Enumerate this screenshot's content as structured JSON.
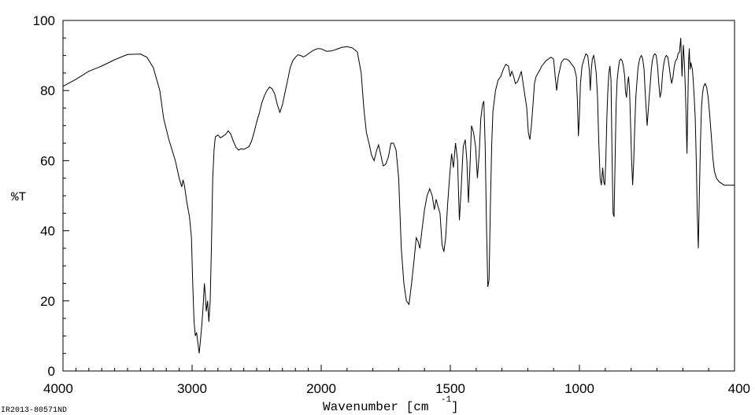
{
  "chart_data": {
    "type": "line",
    "xlabel_main": "Wavenumber [cm",
    "xlabel_sup": "-1",
    "xlabel_end": "]",
    "ylabel": "%T",
    "footer_id": "IR2013-80571ND",
    "xlim": [
      4000,
      400
    ],
    "ylim": [
      0,
      100
    ],
    "x_ticks": [
      4000,
      3000,
      2000,
      1500,
      1000,
      400
    ],
    "x_tick_labels": [
      "4000",
      "3000",
      "2000",
      "1500",
      "1000",
      "400"
    ],
    "y_ticks": [
      0,
      20,
      40,
      60,
      80,
      100
    ],
    "y_tick_labels": [
      "0",
      "20",
      "40",
      "60",
      "80",
      "100"
    ],
    "series": [
      {
        "color": "#000000",
        "points": [
          [
            4000,
            81.2
          ],
          [
            3900,
            83.2
          ],
          [
            3800,
            85.5
          ],
          [
            3700,
            87
          ],
          [
            3600,
            88.8
          ],
          [
            3500,
            90.3
          ],
          [
            3400,
            90.4
          ],
          [
            3350,
            89.5
          ],
          [
            3300,
            86.5
          ],
          [
            3250,
            80
          ],
          [
            3220,
            72
          ],
          [
            3180,
            66
          ],
          [
            3130,
            60
          ],
          [
            3100,
            55
          ],
          [
            3080,
            52.5
          ],
          [
            3070,
            54.5
          ],
          [
            3060,
            53
          ],
          [
            3040,
            48
          ],
          [
            3020,
            44
          ],
          [
            3005,
            38
          ],
          [
            2995,
            25
          ],
          [
            2985,
            14
          ],
          [
            2975,
            10
          ],
          [
            2965,
            11
          ],
          [
            2955,
            8
          ],
          [
            2945,
            5
          ],
          [
            2935,
            9
          ],
          [
            2925,
            13
          ],
          [
            2915,
            18
          ],
          [
            2905,
            25
          ],
          [
            2898,
            22
          ],
          [
            2890,
            17
          ],
          [
            2880,
            20
          ],
          [
            2870,
            14
          ],
          [
            2860,
            20
          ],
          [
            2850,
            36
          ],
          [
            2840,
            55
          ],
          [
            2830,
            63
          ],
          [
            2820,
            66.8
          ],
          [
            2800,
            67.3
          ],
          [
            2780,
            66.5
          ],
          [
            2760,
            67
          ],
          [
            2740,
            67.5
          ],
          [
            2720,
            68.5
          ],
          [
            2700,
            67.5
          ],
          [
            2680,
            65.5
          ],
          [
            2660,
            63.8
          ],
          [
            2640,
            63
          ],
          [
            2620,
            63.4
          ],
          [
            2600,
            63.2
          ],
          [
            2580,
            63.6
          ],
          [
            2560,
            64
          ],
          [
            2540,
            65.5
          ],
          [
            2520,
            68
          ],
          [
            2500,
            71
          ],
          [
            2480,
            73.5
          ],
          [
            2460,
            76.5
          ],
          [
            2440,
            78.5
          ],
          [
            2420,
            80
          ],
          [
            2400,
            81
          ],
          [
            2380,
            80.5
          ],
          [
            2360,
            79
          ],
          [
            2340,
            76
          ],
          [
            2320,
            73.8
          ],
          [
            2300,
            76
          ],
          [
            2280,
            79.5
          ],
          [
            2260,
            83
          ],
          [
            2240,
            86.5
          ],
          [
            2220,
            88.5
          ],
          [
            2200,
            89.5
          ],
          [
            2180,
            90.2
          ],
          [
            2160,
            90
          ],
          [
            2140,
            89.6
          ],
          [
            2120,
            89.9
          ],
          [
            2100,
            90.5
          ],
          [
            2080,
            91
          ],
          [
            2060,
            91.5
          ],
          [
            2040,
            91.8
          ],
          [
            2020,
            92
          ],
          [
            2000,
            91.9
          ],
          [
            1980,
            91.2
          ],
          [
            1960,
            91.3
          ],
          [
            1940,
            91.8
          ],
          [
            1920,
            92.3
          ],
          [
            1900,
            92.5
          ],
          [
            1880,
            92.2
          ],
          [
            1860,
            91
          ],
          [
            1845,
            85
          ],
          [
            1835,
            75
          ],
          [
            1825,
            68
          ],
          [
            1815,
            65
          ],
          [
            1805,
            61.5
          ],
          [
            1795,
            60
          ],
          [
            1785,
            63
          ],
          [
            1778,
            64.5
          ],
          [
            1770,
            62
          ],
          [
            1760,
            58.5
          ],
          [
            1750,
            59
          ],
          [
            1740,
            61
          ],
          [
            1730,
            65
          ],
          [
            1720,
            65
          ],
          [
            1710,
            63
          ],
          [
            1700,
            55
          ],
          [
            1690,
            35
          ],
          [
            1680,
            25
          ],
          [
            1670,
            20
          ],
          [
            1660,
            19
          ],
          [
            1650,
            25
          ],
          [
            1640,
            32
          ],
          [
            1632,
            38
          ],
          [
            1625,
            37
          ],
          [
            1618,
            35
          ],
          [
            1610,
            40
          ],
          [
            1600,
            46
          ],
          [
            1590,
            50
          ],
          [
            1580,
            52
          ],
          [
            1570,
            50
          ],
          [
            1562,
            46
          ],
          [
            1555,
            49
          ],
          [
            1548,
            47
          ],
          [
            1540,
            45
          ],
          [
            1532,
            36
          ],
          [
            1525,
            34
          ],
          [
            1518,
            38
          ],
          [
            1510,
            48
          ],
          [
            1502,
            56
          ],
          [
            1495,
            62
          ],
          [
            1488,
            58
          ],
          [
            1480,
            65
          ],
          [
            1472,
            60
          ],
          [
            1465,
            43
          ],
          [
            1458,
            52
          ],
          [
            1450,
            64
          ],
          [
            1442,
            66
          ],
          [
            1436,
            60
          ],
          [
            1430,
            48
          ],
          [
            1424,
            58
          ],
          [
            1418,
            70
          ],
          [
            1410,
            68
          ],
          [
            1402,
            64
          ],
          [
            1395,
            55
          ],
          [
            1388,
            62
          ],
          [
            1382,
            72
          ],
          [
            1375,
            76
          ],
          [
            1370,
            77
          ],
          [
            1365,
            64
          ],
          [
            1360,
            42
          ],
          [
            1355,
            24
          ],
          [
            1350,
            26
          ],
          [
            1345,
            46
          ],
          [
            1340,
            64
          ],
          [
            1335,
            74
          ],
          [
            1325,
            80
          ],
          [
            1315,
            83
          ],
          [
            1305,
            84
          ],
          [
            1295,
            86
          ],
          [
            1285,
            87.5
          ],
          [
            1275,
            87
          ],
          [
            1268,
            84
          ],
          [
            1262,
            85.5
          ],
          [
            1255,
            84
          ],
          [
            1248,
            82
          ],
          [
            1240,
            82.5
          ],
          [
            1232,
            84
          ],
          [
            1225,
            85.5
          ],
          [
            1218,
            82
          ],
          [
            1210,
            78
          ],
          [
            1204,
            75
          ],
          [
            1198,
            68
          ],
          [
            1192,
            66
          ],
          [
            1186,
            70
          ],
          [
            1180,
            76
          ],
          [
            1174,
            82
          ],
          [
            1168,
            84
          ],
          [
            1160,
            85
          ],
          [
            1152,
            86
          ],
          [
            1146,
            87
          ],
          [
            1140,
            87.5
          ],
          [
            1130,
            88.5
          ],
          [
            1120,
            89
          ],
          [
            1110,
            89.5
          ],
          [
            1100,
            89
          ],
          [
            1094,
            84
          ],
          [
            1088,
            80
          ],
          [
            1082,
            84
          ],
          [
            1076,
            86
          ],
          [
            1070,
            88
          ],
          [
            1060,
            89
          ],
          [
            1050,
            89
          ],
          [
            1040,
            88.5
          ],
          [
            1030,
            87.5
          ],
          [
            1020,
            86.5
          ],
          [
            1012,
            84
          ],
          [
            1008,
            77
          ],
          [
            1004,
            67
          ],
          [
            1000,
            73
          ],
          [
            996,
            82
          ],
          [
            990,
            87
          ],
          [
            982,
            89
          ],
          [
            975,
            90.5
          ],
          [
            968,
            90
          ],
          [
            962,
            86
          ],
          [
            958,
            80
          ],
          [
            954,
            86
          ],
          [
            950,
            89
          ],
          [
            945,
            90
          ],
          [
            940,
            88
          ],
          [
            935,
            85
          ],
          [
            930,
            78
          ],
          [
            925,
            65
          ],
          [
            920,
            55
          ],
          [
            915,
            53
          ],
          [
            910,
            58
          ],
          [
            906,
            54
          ],
          [
            902,
            53
          ],
          [
            898,
            60
          ],
          [
            894,
            72
          ],
          [
            890,
            80
          ],
          [
            886,
            85
          ],
          [
            882,
            87
          ],
          [
            878,
            83
          ],
          [
            874,
            62
          ],
          [
            870,
            45
          ],
          [
            866,
            44
          ],
          [
            862,
            60
          ],
          [
            858,
            76
          ],
          [
            854,
            83
          ],
          [
            850,
            86
          ],
          [
            845,
            88.5
          ],
          [
            840,
            89
          ],
          [
            835,
            88.5
          ],
          [
            830,
            87
          ],
          [
            825,
            84
          ],
          [
            822,
            80
          ],
          [
            818,
            78
          ],
          [
            814,
            82
          ],
          [
            810,
            84
          ],
          [
            806,
            80
          ],
          [
            802,
            70
          ],
          [
            798,
            60
          ],
          [
            794,
            53
          ],
          [
            790,
            60
          ],
          [
            786,
            70
          ],
          [
            782,
            78
          ],
          [
            778,
            82
          ],
          [
            774,
            86
          ],
          [
            770,
            88
          ],
          [
            765,
            89.5
          ],
          [
            760,
            90
          ],
          [
            755,
            89
          ],
          [
            750,
            86
          ],
          [
            746,
            80
          ],
          [
            742,
            75
          ],
          [
            738,
            70
          ],
          [
            734,
            74
          ],
          [
            730,
            78
          ],
          [
            726,
            82
          ],
          [
            722,
            86
          ],
          [
            718,
            88.5
          ],
          [
            713,
            90
          ],
          [
            708,
            90.5
          ],
          [
            703,
            90
          ],
          [
            698,
            87
          ],
          [
            693,
            82
          ],
          [
            688,
            78
          ],
          [
            683,
            80
          ],
          [
            678,
            85
          ],
          [
            673,
            88
          ],
          [
            668,
            89.5
          ],
          [
            663,
            90
          ],
          [
            658,
            89.5
          ],
          [
            653,
            87
          ],
          [
            648,
            84
          ],
          [
            643,
            82
          ],
          [
            638,
            84
          ],
          [
            633,
            87
          ],
          [
            628,
            88.5
          ],
          [
            623,
            89
          ],
          [
            618,
            90.5
          ],
          [
            613,
            91
          ],
          [
            608,
            95
          ],
          [
            603,
            84
          ],
          [
            598,
            93
          ],
          [
            594,
            88
          ],
          [
            590,
            80
          ],
          [
            587,
            72
          ],
          [
            584,
            62
          ],
          [
            581,
            75
          ],
          [
            578,
            88
          ],
          [
            575,
            92
          ],
          [
            572,
            86
          ],
          [
            569,
            88
          ],
          [
            566,
            87
          ],
          [
            563,
            86
          ],
          [
            560,
            83
          ],
          [
            556,
            78
          ],
          [
            552,
            72
          ],
          [
            548,
            60
          ],
          [
            544,
            45
          ],
          [
            540,
            35
          ],
          [
            536,
            50
          ],
          [
            532,
            65
          ],
          [
            528,
            75
          ],
          [
            524,
            79
          ],
          [
            520,
            81
          ],
          [
            514,
            82
          ],
          [
            508,
            81
          ],
          [
            502,
            78
          ],
          [
            496,
            73
          ],
          [
            490,
            67
          ],
          [
            484,
            61
          ],
          [
            478,
            57
          ],
          [
            470,
            55
          ],
          [
            460,
            54
          ],
          [
            450,
            53.5
          ],
          [
            440,
            53
          ],
          [
            430,
            53
          ],
          [
            420,
            53
          ],
          [
            410,
            53
          ],
          [
            400,
            53
          ]
        ]
      }
    ]
  }
}
